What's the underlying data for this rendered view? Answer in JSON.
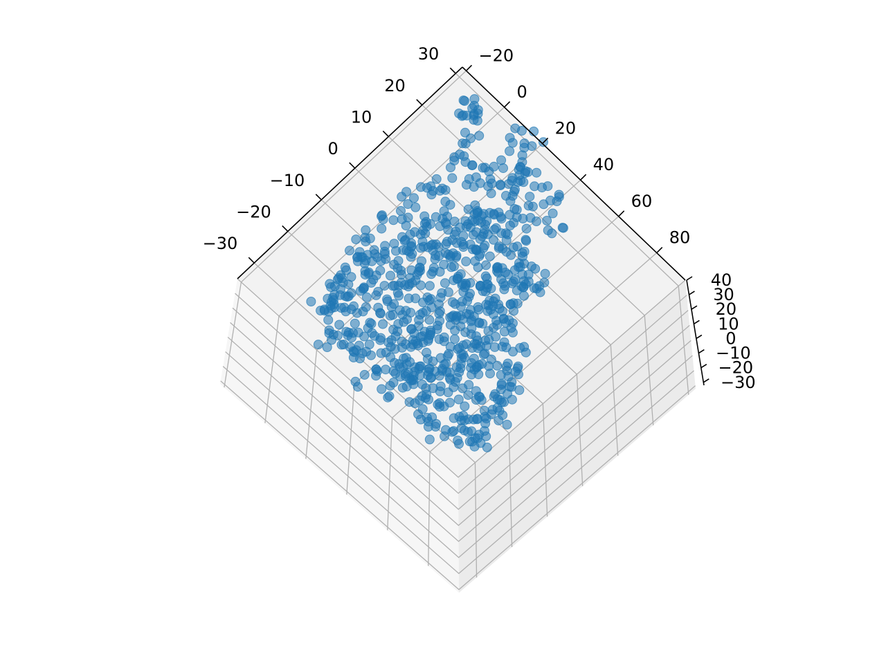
{
  "chart_data": {
    "type": "scatter",
    "projection": "3d",
    "title": "",
    "xlabel": "",
    "ylabel": "",
    "zlabel": "",
    "grid": true,
    "marker_color": "#1f77b4",
    "pane_colors": {
      "top": "#f2f2f2",
      "left_side": "#f6f6f6",
      "right_side": "#ebebeb"
    },
    "axes": {
      "x": {
        "ticks": [
          -30,
          -20,
          -10,
          0,
          10,
          20,
          30
        ],
        "tick_labels": [
          "−30",
          "−20",
          "−10",
          "0",
          "10",
          "20",
          "30"
        ],
        "range": [
          -35,
          32
        ]
      },
      "y": {
        "ticks": [
          -20,
          0,
          20,
          40,
          60,
          80
        ],
        "tick_labels": [
          "−20",
          "0",
          "20",
          "40",
          "60",
          "80"
        ],
        "range": [
          -22,
          95
        ]
      },
      "z": {
        "ticks": [
          40,
          30,
          20,
          10,
          0,
          -10,
          -20,
          -30
        ],
        "tick_labels": [
          "40",
          "30",
          "20",
          "10",
          "0",
          "−10",
          "−20",
          "−30"
        ],
        "range": [
          -32,
          40
        ]
      }
    },
    "approximate_point_count": 1000,
    "points_xy": [
      [
        -25,
        8
      ],
      [
        -27,
        12
      ],
      [
        -24,
        15
      ],
      [
        -30,
        20
      ],
      [
        -33,
        22
      ],
      [
        -28,
        24
      ],
      [
        -25,
        10
      ],
      [
        -20,
        5
      ],
      [
        -18,
        8
      ],
      [
        -22,
        12
      ],
      [
        -15,
        10
      ],
      [
        -12,
        6
      ],
      [
        -16,
        15
      ],
      [
        -19,
        18
      ],
      [
        -10,
        12
      ],
      [
        -8,
        8
      ],
      [
        -12,
        18
      ],
      [
        -6,
        14
      ],
      [
        -4,
        10
      ],
      [
        -8,
        22
      ],
      [
        -3,
        18
      ],
      [
        0,
        15
      ],
      [
        2,
        12
      ],
      [
        -2,
        24
      ],
      [
        4,
        20
      ],
      [
        1,
        28
      ],
      [
        6,
        16
      ],
      [
        8,
        22
      ],
      [
        5,
        30
      ],
      [
        10,
        25
      ],
      [
        7,
        34
      ],
      [
        12,
        20
      ],
      [
        -5,
        28
      ],
      [
        -1,
        32
      ],
      [
        3,
        36
      ],
      [
        9,
        38
      ],
      [
        14,
        30
      ],
      [
        11,
        42
      ],
      [
        6,
        45
      ],
      [
        15,
        35
      ],
      [
        -14,
        26
      ],
      [
        -18,
        30
      ],
      [
        -10,
        34
      ],
      [
        -6,
        38
      ],
      [
        -2,
        40
      ],
      [
        2,
        44
      ],
      [
        -20,
        36
      ],
      [
        -24,
        34
      ],
      [
        -28,
        30
      ],
      [
        -16,
        40
      ],
      [
        -12,
        44
      ],
      [
        -8,
        48
      ],
      [
        -22,
        42
      ],
      [
        -26,
        38
      ],
      [
        -30,
        34
      ],
      [
        -18,
        46
      ],
      [
        -4,
        50
      ],
      [
        0,
        52
      ],
      [
        -14,
        50
      ],
      [
        -10,
        54
      ],
      [
        4,
        48
      ],
      [
        8,
        52
      ],
      [
        12,
        46
      ],
      [
        -6,
        56
      ],
      [
        -24,
        48
      ],
      [
        -28,
        44
      ],
      [
        -32,
        40
      ],
      [
        -20,
        52
      ],
      [
        -16,
        56
      ],
      [
        16,
        40
      ],
      [
        18,
        28
      ],
      [
        20,
        34
      ],
      [
        22,
        22
      ],
      [
        24,
        30
      ],
      [
        19,
        46
      ],
      [
        25,
        40
      ],
      [
        26,
        20
      ],
      [
        -2,
        60
      ],
      [
        2,
        58
      ],
      [
        6,
        56
      ],
      [
        -10,
        62
      ],
      [
        -14,
        60
      ],
      [
        -18,
        58
      ],
      [
        -22,
        56
      ],
      [
        -26,
        54
      ],
      [
        -30,
        50
      ],
      [
        10,
        60
      ],
      [
        -8,
        66
      ],
      [
        -4,
        64
      ],
      [
        -12,
        70
      ],
      [
        -16,
        68
      ],
      [
        -20,
        64
      ],
      [
        -24,
        62
      ],
      [
        -6,
        72
      ],
      [
        -10,
        76
      ],
      [
        -18,
        74
      ],
      [
        -22,
        72
      ],
      [
        -26,
        68
      ],
      [
        -28,
        62
      ],
      [
        -14,
        80
      ],
      [
        -20,
        82
      ],
      [
        -24,
        78
      ],
      [
        -18,
        88
      ],
      [
        -22,
        86
      ],
      [
        -26,
        84
      ],
      [
        -16,
        84
      ],
      [
        -28,
        80
      ],
      [
        -30,
        74
      ],
      [
        -24,
        90
      ],
      [
        -27,
        88
      ],
      [
        -31,
        68
      ],
      [
        -12,
        82
      ],
      [
        -8,
        78
      ],
      [
        28,
        10
      ],
      [
        27,
        -5
      ],
      [
        27,
        -8
      ],
      [
        27,
        -12
      ],
      [
        22,
        0
      ],
      [
        16,
        2
      ],
      [
        8,
        5
      ],
      [
        4,
        2
      ],
      [
        -4,
        0
      ],
      [
        30,
        18
      ],
      [
        -9,
        2
      ],
      [
        -14,
        4
      ],
      [
        14,
        12
      ],
      [
        18,
        8
      ],
      [
        0,
        6
      ],
      [
        10,
        8
      ],
      [
        -2,
        36
      ],
      [
        4,
        40
      ],
      [
        -7,
        42
      ],
      [
        -11,
        38
      ],
      [
        -15,
        34
      ],
      [
        -19,
        24
      ],
      [
        -23,
        20
      ],
      [
        -26,
        26
      ],
      [
        -21,
        30
      ],
      [
        -13,
        22
      ],
      [
        -9,
        26
      ],
      [
        -5,
        22
      ],
      [
        -1,
        20
      ],
      [
        3,
        24
      ],
      [
        7,
        28
      ],
      [
        11,
        32
      ],
      [
        13,
        26
      ],
      [
        17,
        18
      ],
      [
        21,
        14
      ],
      [
        23,
        26
      ],
      [
        -3,
        44
      ],
      [
        1,
        48
      ],
      [
        5,
        52
      ],
      [
        -9,
        58
      ],
      [
        -13,
        64
      ],
      [
        -17,
        62
      ],
      [
        -21,
        60
      ],
      [
        -25,
        58
      ],
      [
        -5,
        60
      ],
      [
        -1,
        56
      ],
      [
        -7,
        52
      ],
      [
        -11,
        48
      ],
      [
        -17,
        44
      ],
      [
        -23,
        46
      ],
      [
        -27,
        50
      ]
    ]
  }
}
